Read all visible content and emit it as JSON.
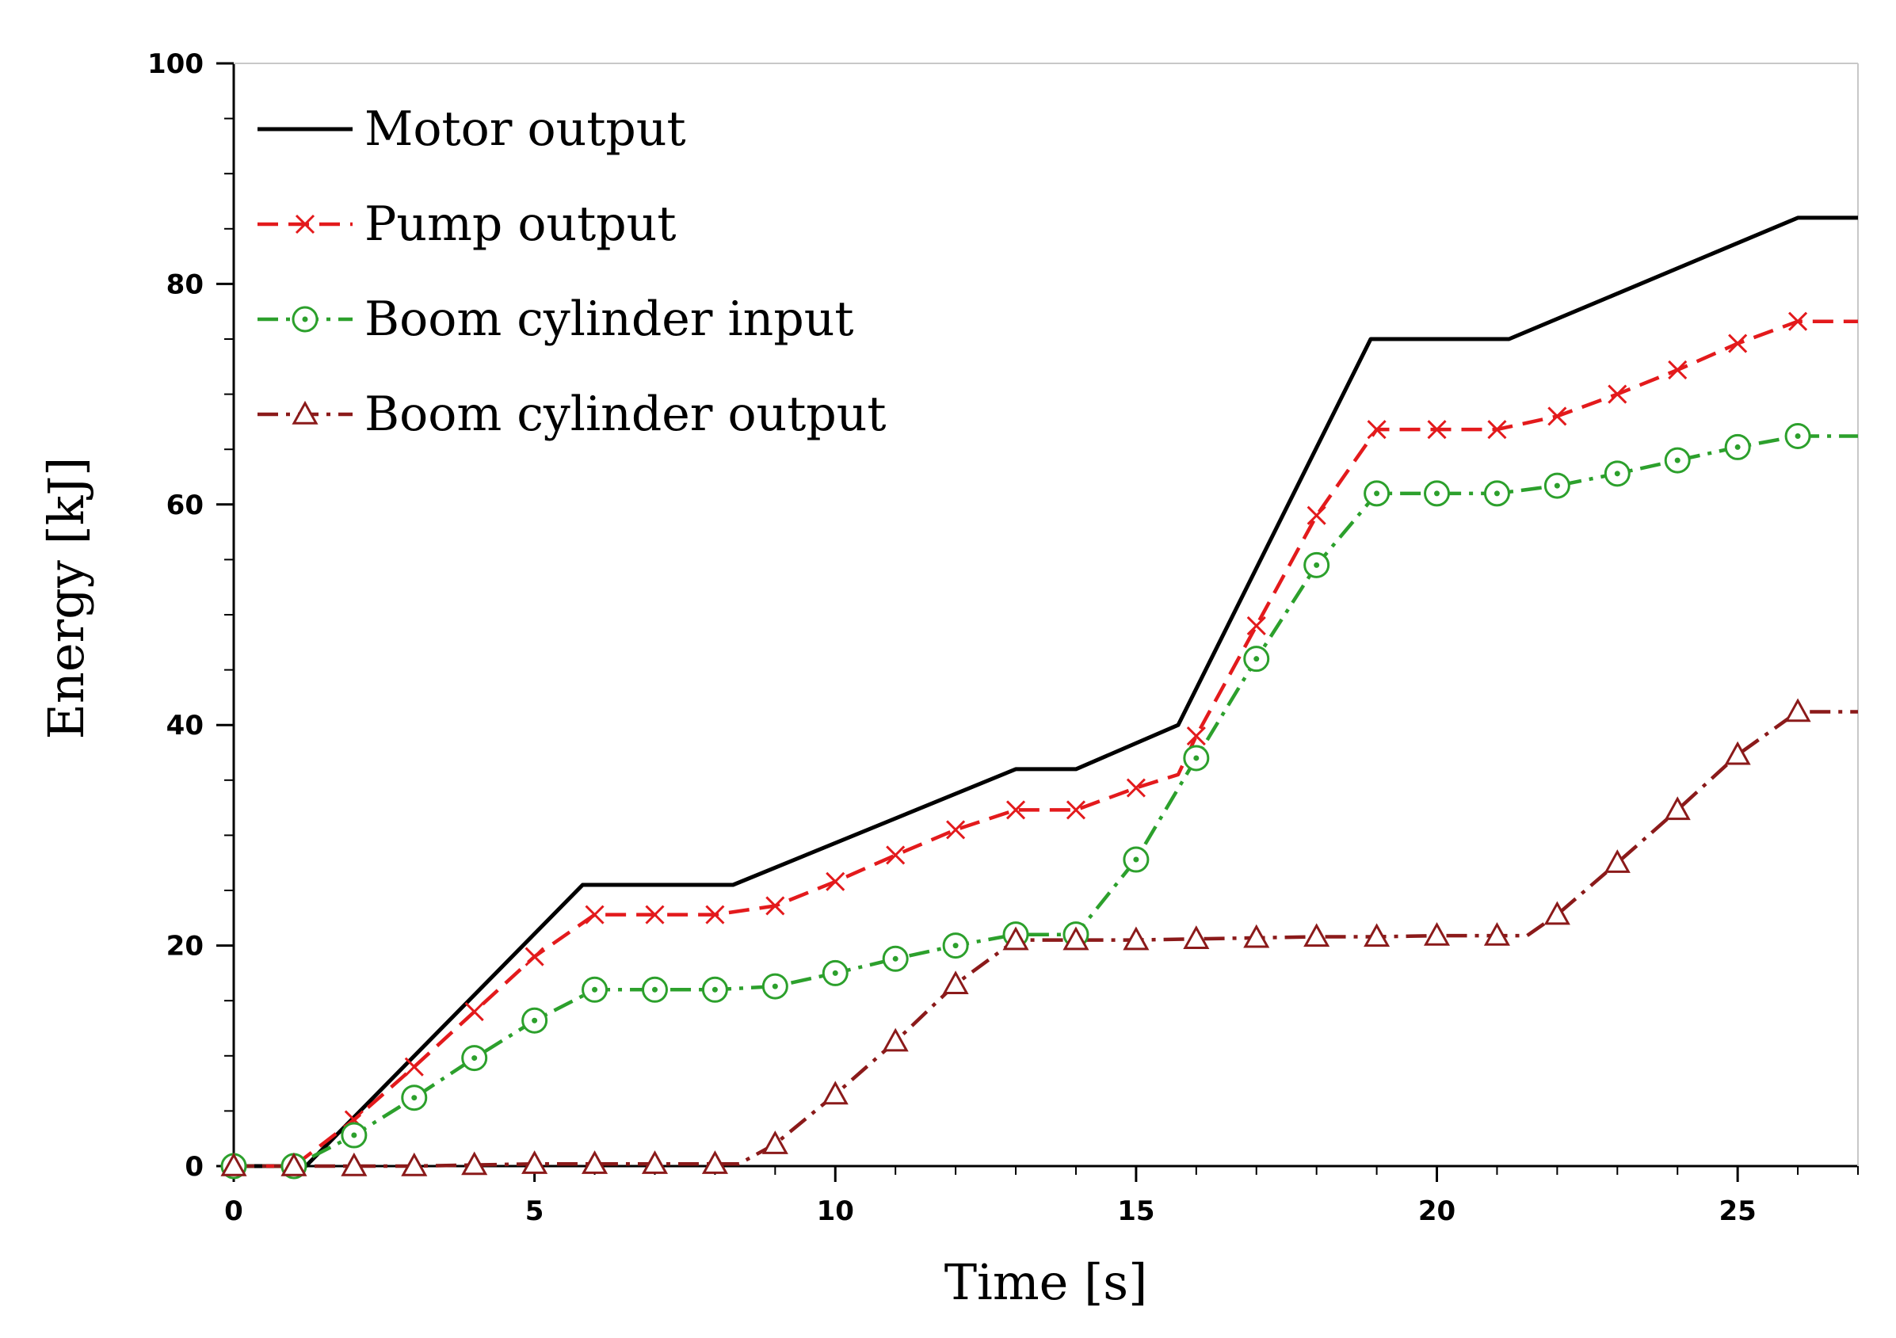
{
  "chart_data": {
    "type": "line",
    "title": "",
    "xlabel": "Time [s]",
    "ylabel": "Energy [kJ]",
    "xlim": [
      0,
      27
    ],
    "ylim": [
      0,
      100
    ],
    "xticks": [
      0,
      5,
      10,
      15,
      20,
      25
    ],
    "yticks": [
      0,
      20,
      40,
      60,
      80,
      100
    ],
    "legend_position": "top-left",
    "series": [
      {
        "name": "Motor output",
        "color": "#000000",
        "style": "solid",
        "marker": "none",
        "x": [
          0,
          1.2,
          5.8,
          8.3,
          13.0,
          14.0,
          15.7,
          18.9,
          21.2,
          26.0,
          27
        ],
        "y": [
          0,
          0,
          25.5,
          25.5,
          36.0,
          36.0,
          40.0,
          75.0,
          75.0,
          86.0,
          86.0
        ],
        "marker_x": [],
        "marker_y": []
      },
      {
        "name": "Pump output",
        "color": "#e31a1c",
        "style": "dash",
        "marker": "x",
        "x": [
          0,
          1,
          2,
          3,
          4,
          5,
          6,
          7,
          8,
          9,
          10,
          11,
          12,
          13,
          14,
          15,
          15.7,
          16,
          17,
          18,
          19,
          20,
          21,
          22,
          23,
          24,
          25,
          26,
          27
        ],
        "y": [
          0,
          0,
          4.2,
          9.0,
          14.0,
          19.0,
          22.8,
          22.8,
          22.8,
          23.6,
          25.8,
          28.2,
          30.5,
          32.3,
          32.3,
          34.3,
          35.5,
          39.0,
          49.0,
          59.0,
          66.8,
          66.8,
          66.8,
          68.0,
          70.0,
          72.2,
          74.6,
          76.6,
          76.6
        ],
        "marker_x": [
          0,
          1,
          2,
          3,
          4,
          5,
          6,
          7,
          8,
          9,
          10,
          11,
          12,
          13,
          14,
          15,
          16,
          17,
          18,
          19,
          20,
          21,
          22,
          23,
          24,
          25,
          26
        ],
        "marker_y": [
          0,
          0,
          4.2,
          9.0,
          14.0,
          19.0,
          22.8,
          22.8,
          22.8,
          23.6,
          25.8,
          28.2,
          30.5,
          32.3,
          32.3,
          34.3,
          39.0,
          49.0,
          59.0,
          66.8,
          66.8,
          66.8,
          68.0,
          70.0,
          72.2,
          74.6,
          76.6
        ]
      },
      {
        "name": "Boom cylinder input",
        "color": "#2ca02c",
        "style": "dashdot",
        "marker": "circle-dot",
        "x": [
          0,
          1,
          2,
          3,
          4,
          5,
          6,
          7,
          8,
          9,
          10,
          11,
          12,
          13,
          14,
          15,
          16,
          17,
          18,
          19,
          20,
          21,
          22,
          23,
          24,
          25,
          26,
          27
        ],
        "y": [
          0,
          0,
          2.8,
          6.2,
          9.8,
          13.2,
          16.0,
          16.0,
          16.0,
          16.3,
          17.5,
          18.8,
          20.0,
          21.0,
          21.0,
          27.8,
          37.0,
          46.0,
          54.5,
          61.0,
          61.0,
          61.0,
          61.7,
          62.8,
          64.0,
          65.2,
          66.2,
          66.2
        ],
        "marker_x": [
          0,
          1,
          2,
          3,
          4,
          5,
          6,
          7,
          8,
          9,
          10,
          11,
          12,
          13,
          14,
          15,
          16,
          17,
          18,
          19,
          20,
          21,
          22,
          23,
          24,
          25,
          26
        ],
        "marker_y": [
          0,
          0,
          2.8,
          6.2,
          9.8,
          13.2,
          16.0,
          16.0,
          16.0,
          16.3,
          17.5,
          18.8,
          20.0,
          21.0,
          21.0,
          27.8,
          37.0,
          46.0,
          54.5,
          61.0,
          61.0,
          61.0,
          61.7,
          62.8,
          64.0,
          65.2,
          66.2
        ]
      },
      {
        "name": "Boom cylinder output",
        "color": "#8b1a1a",
        "style": "dashdot",
        "marker": "triangle",
        "x": [
          0,
          1,
          2,
          3,
          4,
          5,
          6,
          7,
          8,
          8.4,
          9,
          10,
          11,
          12,
          13,
          14,
          15,
          16,
          17,
          18,
          19,
          20,
          21,
          21.5,
          22,
          23,
          24,
          25,
          26,
          27
        ],
        "y": [
          0,
          0,
          0,
          0,
          0.1,
          0.2,
          0.2,
          0.2,
          0.2,
          0.2,
          2.0,
          6.5,
          11.3,
          16.5,
          20.5,
          20.5,
          20.5,
          20.6,
          20.7,
          20.8,
          20.8,
          20.9,
          20.9,
          20.9,
          22.8,
          27.5,
          32.3,
          37.3,
          41.2,
          41.2
        ],
        "marker_x": [
          0,
          1,
          2,
          3,
          4,
          5,
          6,
          7,
          8,
          9,
          10,
          11,
          12,
          13,
          14,
          15,
          16,
          17,
          18,
          19,
          20,
          21,
          22,
          23,
          24,
          25,
          26
        ],
        "marker_y": [
          0,
          0,
          0,
          0,
          0.1,
          0.2,
          0.2,
          0.2,
          0.2,
          2.0,
          6.5,
          11.3,
          16.5,
          20.5,
          20.5,
          20.5,
          20.6,
          20.7,
          20.8,
          20.8,
          20.9,
          20.9,
          22.8,
          27.5,
          32.3,
          37.3,
          41.2
        ]
      }
    ]
  }
}
